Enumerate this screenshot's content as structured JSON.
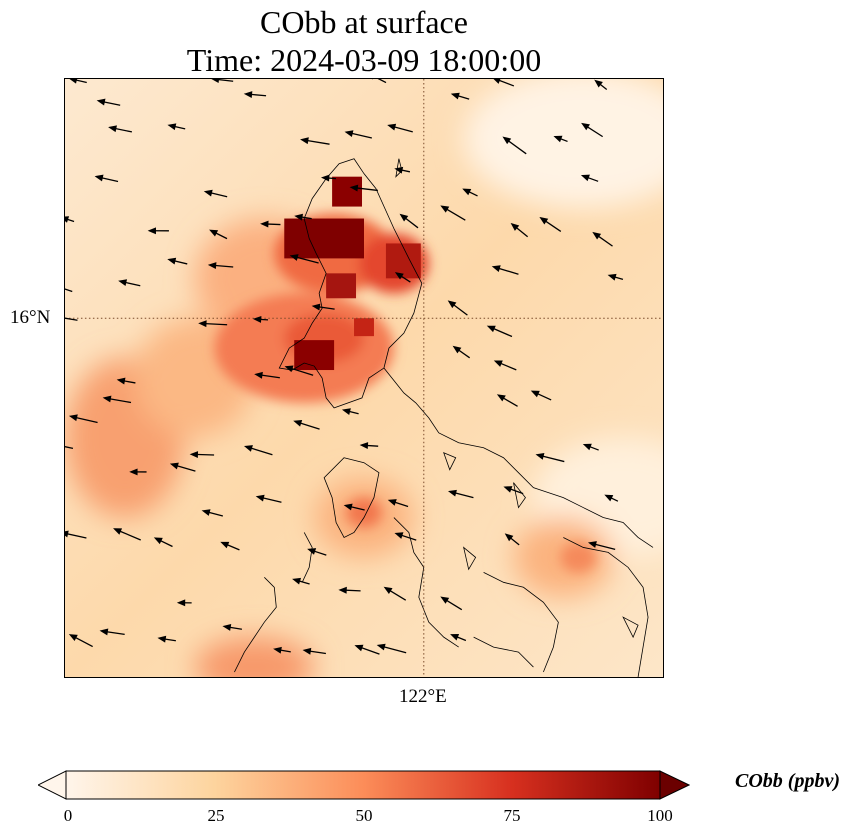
{
  "title": {
    "line1": "CObb at surface",
    "line2": "Time: 2024-03-09 18:00:00"
  },
  "axes": {
    "lat_label": "16°N",
    "lon_label": "122°E"
  },
  "colorbar": {
    "label": "CObb (ppbv)",
    "ticks": [
      "0",
      "25",
      "50",
      "75",
      "100"
    ],
    "min": 0,
    "max": 100,
    "colors": [
      "#fff5eb",
      "#fdd49e",
      "#fc8d59",
      "#d7301f",
      "#7f0000"
    ]
  }
}
